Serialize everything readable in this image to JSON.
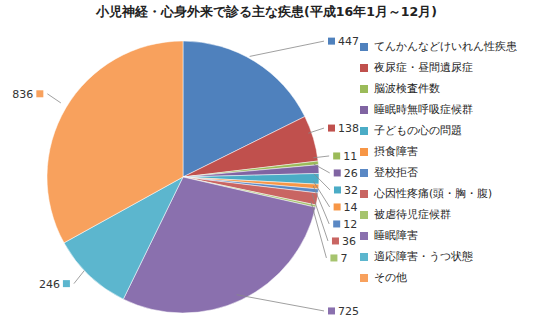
{
  "chart_data": {
    "type": "pie",
    "title": "小児神経・心身外来で診る主な疾患(平成16年1月～12月)",
    "categories": [
      "てんかんなどけいれん性疾患",
      "夜尿症・昼間遺尿症",
      "脳波検査件数",
      "睡眠時無呼吸症候群",
      "子どもの心の問題",
      "摂食障害",
      "登校拒否",
      "心因性疼痛(頭・胸・腹)",
      "被虐待児症候群",
      "睡眠障害",
      "適応障害・うつ状態",
      "その他"
    ],
    "values": [
      447,
      138,
      11,
      26,
      32,
      14,
      12,
      36,
      7,
      725,
      246,
      836
    ],
    "colors": [
      "#4f81bd",
      "#c0504d",
      "#9bbb59",
      "#8064a2",
      "#4bacc6",
      "#f79646",
      "#5a88c4",
      "#c96562",
      "#a6c46e",
      "#8a70ae",
      "#5cb6ce",
      "#f8a15d"
    ],
    "data_labels": true,
    "legend": "right"
  }
}
